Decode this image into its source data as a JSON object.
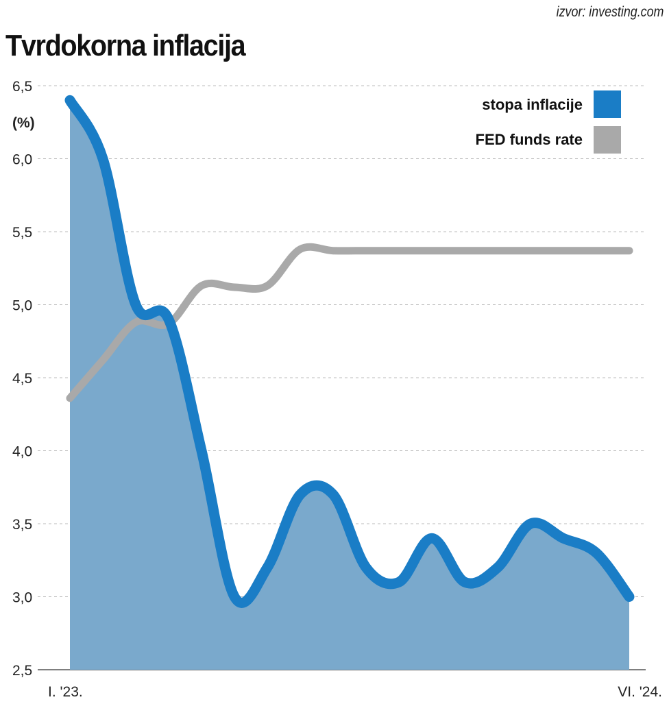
{
  "source": "izvor: investing.com",
  "chart_data": {
    "type": "line",
    "title": "Tvrdokorna inflacija",
    "ylabel": "(%)",
    "xlabel": "",
    "ylim": [
      2.5,
      6.5
    ],
    "yticks": [
      "2,5",
      "3,0",
      "3,5",
      "4,0",
      "4,5",
      "5,0",
      "5,5",
      "6,0",
      "6,5"
    ],
    "ytick_values": [
      2.5,
      3.0,
      3.5,
      4.0,
      4.5,
      5.0,
      5.5,
      6.0,
      6.5
    ],
    "x_labels": [
      "I. '23.",
      "VI. '24."
    ],
    "x": [
      "2023-01",
      "2023-02",
      "2023-03",
      "2023-04",
      "2023-05",
      "2023-06",
      "2023-07",
      "2023-08",
      "2023-09",
      "2023-10",
      "2023-11",
      "2023-12",
      "2024-01",
      "2024-02",
      "2024-03",
      "2024-04",
      "2024-05",
      "2024-06"
    ],
    "grid": true,
    "legend_position": "top-right",
    "series": [
      {
        "name": "stopa inflacije",
        "color": "#1a7dc6",
        "fill": "#7aa9cc",
        "values": [
          6.4,
          6.0,
          5.0,
          4.9,
          4.0,
          3.0,
          3.2,
          3.7,
          3.7,
          3.2,
          3.1,
          3.4,
          3.1,
          3.2,
          3.5,
          3.4,
          3.3,
          3.0
        ]
      },
      {
        "name": "FED funds rate",
        "color": "#a9a9a9",
        "values": [
          4.36,
          4.62,
          4.88,
          4.87,
          5.13,
          5.12,
          5.13,
          5.38,
          5.37,
          5.37,
          5.37,
          5.37,
          5.37,
          5.37,
          5.37,
          5.37,
          5.37,
          5.37
        ]
      }
    ]
  }
}
